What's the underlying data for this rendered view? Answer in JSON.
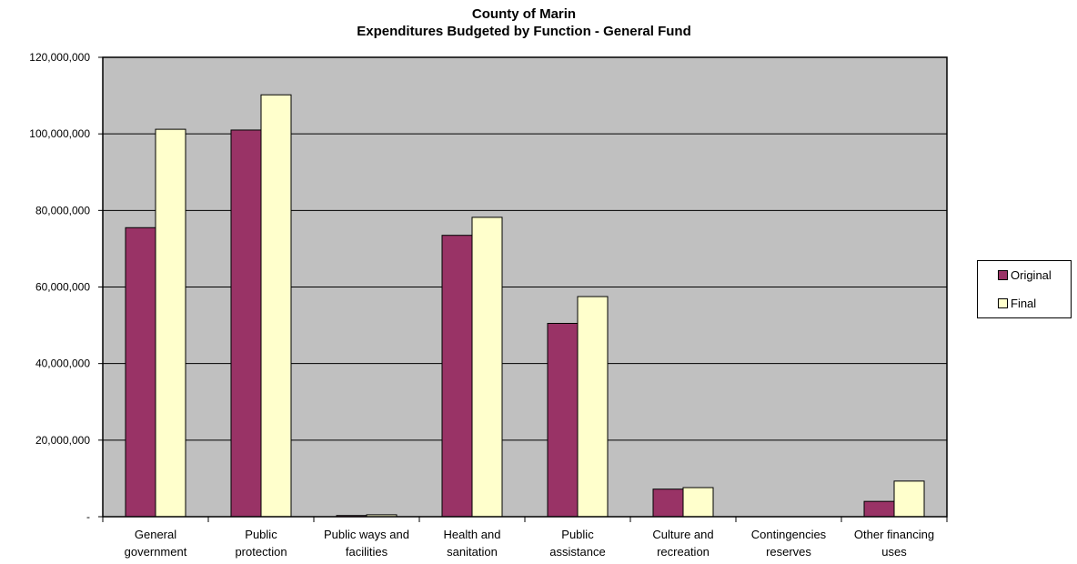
{
  "chart_data": {
    "type": "bar",
    "title": "County of Marin",
    "subtitle": "Expenditures Budgeted by Function - General Fund",
    "xlabel": "",
    "ylabel": "",
    "ylim": [
      0,
      120000000
    ],
    "yticks": [
      0,
      20000000,
      40000000,
      60000000,
      80000000,
      100000000,
      120000000
    ],
    "ytick_labels": [
      "-",
      "20,000,000",
      "40,000,000",
      "60,000,000",
      "80,000,000",
      "100,000,000",
      "120,000,000"
    ],
    "grid": true,
    "legend_position": "right",
    "categories": [
      [
        "General",
        "government"
      ],
      [
        "Public",
        "protection"
      ],
      [
        "Public ways and",
        "facilities"
      ],
      [
        "Health and",
        "sanitation"
      ],
      [
        "Public",
        "assistance"
      ],
      [
        "Culture and",
        "recreation"
      ],
      [
        "Contingencies",
        "reserves"
      ],
      [
        "Other financing",
        "uses"
      ]
    ],
    "series": [
      {
        "name": "Original",
        "color": "#993366",
        "values": [
          75500000,
          101000000,
          300000,
          73500000,
          50500000,
          7200000,
          0,
          4000000
        ]
      },
      {
        "name": "Final",
        "color": "#FFFFCC",
        "values": [
          101200000,
          110200000,
          500000,
          78200000,
          57500000,
          7600000,
          0,
          9300000
        ]
      }
    ],
    "plot_background": "#C0C0C0"
  }
}
